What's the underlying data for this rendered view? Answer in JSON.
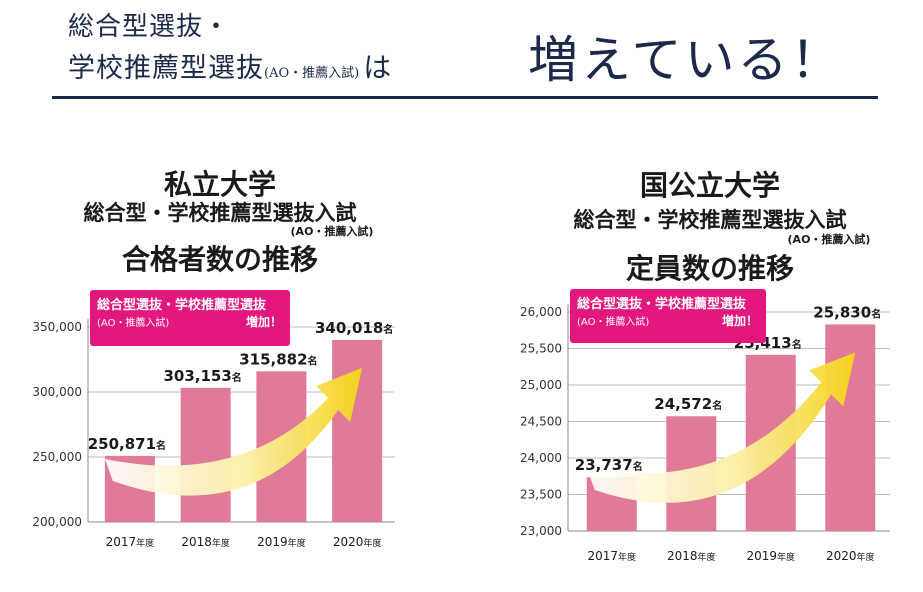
{
  "header": {
    "line1": "総合型選抜・",
    "line2_main": "学校推薦型選抜",
    "line2_sub": "(AO・推薦入試)",
    "line2_ha": "は",
    "headline": "増えている！"
  },
  "colors": {
    "bar": "#e17a97",
    "badge": "#e3177d",
    "navy": "#1b2a4a",
    "arrow_start": "#ffffff",
    "arrow_end": "#f5d31a"
  },
  "chart_data": [
    {
      "type": "bar",
      "title_line1": "私立大学",
      "title_line2": "総合型・学校推薦型選抜入試",
      "title_sub": "(AO・推薦入試)",
      "title_line3": "合格者数の推移",
      "badge_line1": "総合型選抜・学校推薦型選抜",
      "badge_line2": "(AO・推薦入試)",
      "badge_line3": "増加！",
      "categories": [
        "2017年度",
        "2018年度",
        "2019年度",
        "2020年度"
      ],
      "values": [
        250871,
        303153,
        315882,
        340018
      ],
      "value_labels": [
        "250,871名",
        "303,153名",
        "315,882名",
        "340,018名"
      ],
      "yticks": [
        "350,000",
        "300,000",
        "250,000",
        "200,000"
      ],
      "ytick_values": [
        350000,
        300000,
        250000,
        200000
      ],
      "ylim": [
        200000,
        350000
      ],
      "grid": true
    },
    {
      "type": "bar",
      "title_line1": "国公立大学",
      "title_line2": "総合型・学校推薦型選抜入試",
      "title_sub": "(AO・推薦入試)",
      "title_line3": "定員数の推移",
      "badge_line1": "総合型選抜・学校推薦型選抜",
      "badge_line2": "(AO・推薦入試)",
      "badge_line3": "増加！",
      "categories": [
        "2017年度",
        "2018年度",
        "2019年度",
        "2020年度"
      ],
      "values": [
        23737,
        24572,
        25413,
        25830
      ],
      "value_labels": [
        "23,737名",
        "24,572名",
        "25,413名",
        "25,830名"
      ],
      "yticks": [
        "26,000",
        "25,500",
        "25,000",
        "24,500",
        "24,000",
        "23,500",
        "23,000"
      ],
      "ytick_values": [
        26000,
        25500,
        25000,
        24500,
        24000,
        23500,
        23000
      ],
      "ylim": [
        23000,
        26000
      ],
      "grid": true
    }
  ]
}
